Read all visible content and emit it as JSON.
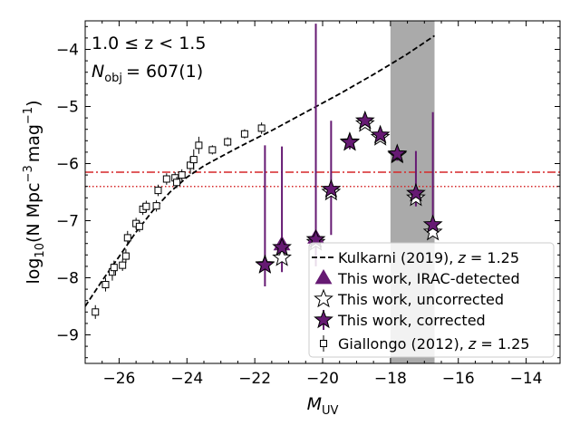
{
  "chart_data": {
    "type": "scatter",
    "title": "",
    "xlabel_main": "M",
    "xlabel_sub": "UV",
    "ylabel_parts": [
      "log",
      "10",
      "(N Mpc",
      "−3",
      "mag",
      "−1",
      ")"
    ],
    "xlim": [
      -27.0,
      -13.0
    ],
    "ylim": [
      -9.5,
      -3.5
    ],
    "xticks": [
      -26,
      -24,
      -22,
      -20,
      -18,
      -16,
      -14
    ],
    "yticks": [
      -9,
      -8,
      -7,
      -6,
      -5,
      -4
    ],
    "xtick_labels": [
      "−26",
      "−24",
      "−22",
      "−20",
      "−18",
      "−16",
      "−14"
    ],
    "ytick_labels": [
      "−9",
      "−8",
      "−7",
      "−6",
      "−5",
      "−4"
    ],
    "annotations": {
      "redshift_range": "1.0 ≤ z < 1.5",
      "nobj_label": "N",
      "nobj_sub": "obj",
      "nobj_value": "= 607(1)"
    },
    "shaded_band": {
      "x": [
        -18.0,
        -16.7
      ],
      "color": "#aaaaaa"
    },
    "hlines": [
      {
        "y": -6.15,
        "style": "dashdot",
        "color": "#d62728"
      },
      {
        "y": -6.4,
        "style": "dotted",
        "color": "#d62728"
      }
    ],
    "legend": {
      "placement": "lower-right",
      "entries": [
        {
          "key": "kulkarni",
          "text": "Kulkarni (2019), z = 1.25"
        },
        {
          "key": "irac",
          "text": "This work, IRAC-detected"
        },
        {
          "key": "uncorrected",
          "text": "This work, uncorrected"
        },
        {
          "key": "corrected",
          "text": "This work, corrected"
        },
        {
          "key": "giallongo",
          "text": "Giallongo (2012), z = 1.25"
        }
      ]
    },
    "colors": {
      "purple": "#661a73",
      "black": "#000000",
      "red": "#d62728"
    },
    "series": [
      {
        "key": "kulkarni",
        "style": "dashed-line",
        "x": [
          -27.0,
          -26.5,
          -26.0,
          -25.5,
          -25.0,
          -24.5,
          -24.0,
          -23.5,
          -23.0,
          -22.5,
          -22.0,
          -21.5,
          -21.0,
          -20.5,
          -20.0,
          -19.5,
          -19.0,
          -18.5,
          -18.0,
          -17.5,
          -17.0,
          -16.7
        ],
        "y": [
          -8.5,
          -8.05,
          -7.63,
          -7.2,
          -6.82,
          -6.5,
          -6.24,
          -6.04,
          -5.88,
          -5.72,
          -5.57,
          -5.42,
          -5.26,
          -5.1,
          -4.94,
          -4.78,
          -4.61,
          -4.44,
          -4.26,
          -4.08,
          -3.88,
          -3.76
        ]
      },
      {
        "key": "giallongo",
        "style": "open-square-errorbar",
        "x": [
          -26.7,
          -26.4,
          -26.2,
          -26.15,
          -25.9,
          -25.8,
          -25.75,
          -25.5,
          -25.4,
          -25.3,
          -25.2,
          -24.9,
          -24.85,
          -24.6,
          -24.35,
          -24.3,
          -24.15,
          -23.9,
          -23.8,
          -23.65,
          -23.25,
          -22.8,
          -22.3,
          -21.8
        ],
        "y": [
          -8.6,
          -8.12,
          -7.9,
          -7.82,
          -7.78,
          -7.62,
          -7.3,
          -7.05,
          -7.1,
          -6.8,
          -6.75,
          -6.74,
          -6.47,
          -6.27,
          -6.25,
          -6.33,
          -6.2,
          -6.03,
          -5.93,
          -5.68,
          -5.76,
          -5.62,
          -5.48,
          -5.38
        ],
        "yerr": [
          0.12,
          0.12,
          0.15,
          0.12,
          0.1,
          0.12,
          0.12,
          0.1,
          0.1,
          0.1,
          0.1,
          0.1,
          0.1,
          0.1,
          0.1,
          0.1,
          0.1,
          0.15,
          0.18,
          0.15,
          0.08,
          0.08,
          0.08,
          0.1
        ]
      },
      {
        "key": "irac",
        "style": "filled-triangle",
        "x": [
          -21.2,
          -20.2
        ],
        "y": [
          -7.42,
          -7.3
        ]
      },
      {
        "key": "uncorrected",
        "style": "open-star",
        "x": [
          -21.7,
          -21.2,
          -20.2,
          -19.75,
          -19.2,
          -18.75,
          -18.3,
          -17.8,
          -17.25,
          -16.75
        ],
        "y": [
          -7.77,
          -7.65,
          -7.38,
          -6.5,
          -5.62,
          -5.3,
          -5.54,
          -5.85,
          -6.6,
          -7.2
        ]
      },
      {
        "key": "corrected",
        "style": "filled-star-errorbar",
        "x": [
          -21.7,
          -21.2,
          -20.2,
          -19.75,
          -19.2,
          -18.75,
          -18.3,
          -17.8,
          -17.25,
          -16.75
        ],
        "y": [
          -7.78,
          -7.47,
          -7.33,
          -6.45,
          -5.63,
          -5.25,
          -5.5,
          -5.83,
          -6.52,
          -7.07
        ],
        "ylo": [
          -8.15,
          -7.9,
          -7.8,
          -7.25,
          -5.75,
          -5.35,
          -5.6,
          -5.95,
          -6.75,
          -7.25
        ],
        "yhi": [
          -5.68,
          -5.7,
          -3.55,
          -5.25,
          -5.55,
          -5.15,
          -5.4,
          -5.73,
          -5.78,
          -5.1
        ]
      }
    ]
  }
}
